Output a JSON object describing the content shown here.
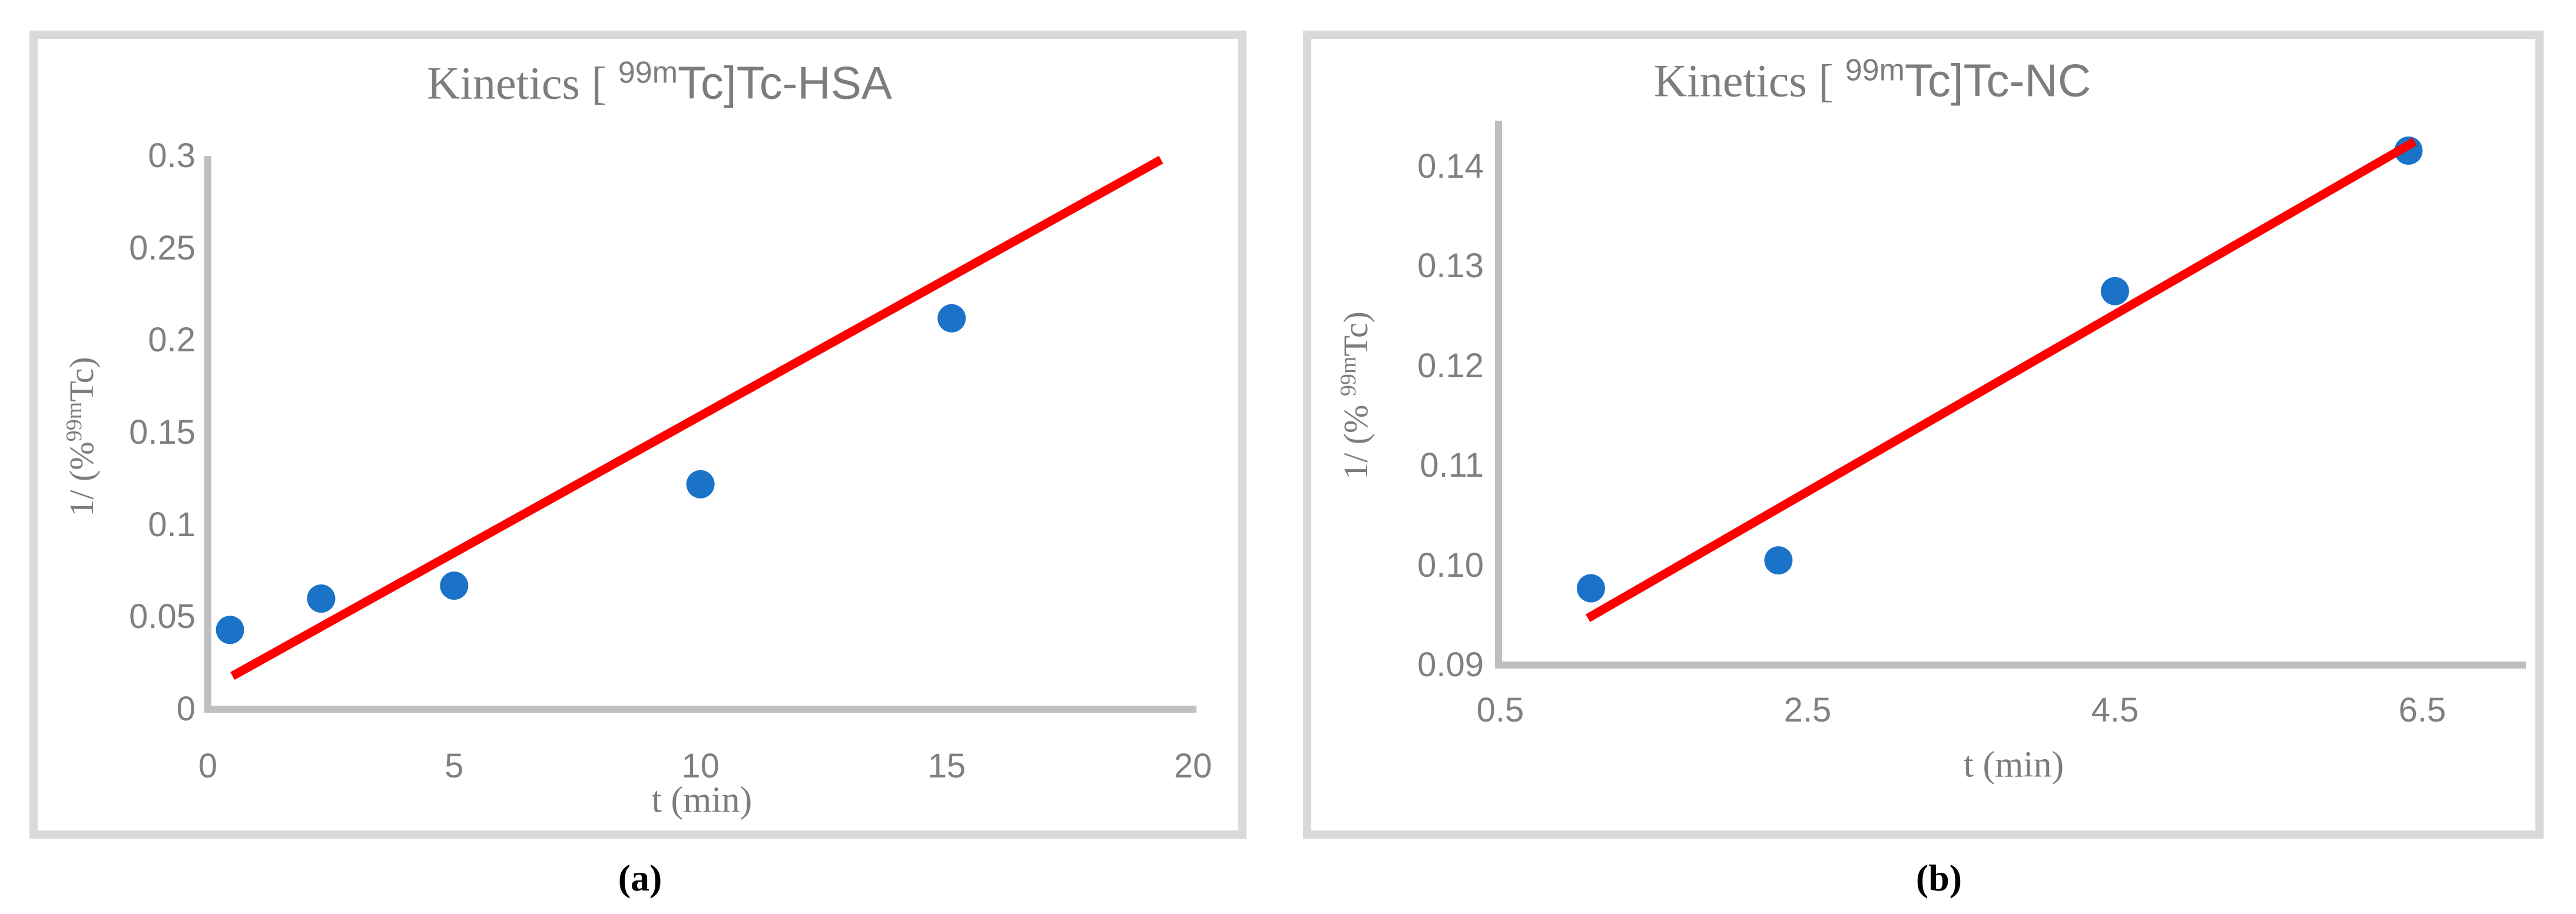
{
  "figure": {
    "caption_a": "(a)",
    "caption_b": "(b)"
  },
  "colors": {
    "marker_blue": "#1a73c8",
    "trend_red": "#fe0000",
    "axis_gray": "#bfbfbf",
    "panel_border": "#d9d9d9",
    "text_gray": "#7d7d7d",
    "caption_black": "#000000"
  },
  "chart_data": [
    {
      "type": "scatter",
      "panel": "a",
      "title": "Kinetics [ 99mTc]Tc-HSA",
      "title_parts": {
        "prefix": "Kinetics [ ",
        "sup": "99m",
        "suffix": "Tc]Tc-HSA"
      },
      "xlabel": "t (min)",
      "ylabel": "1/ (%99mTc)",
      "ylabel_parts": {
        "prefix": "1/ (%",
        "sup": "99m",
        "suffix": "Tc)"
      },
      "xlim": [
        0,
        20
      ],
      "ylim": [
        0,
        0.3
      ],
      "grid": false,
      "legend": false,
      "x_ticks": [
        {
          "label": "0",
          "value": 0
        },
        {
          "label": "5",
          "value": 5
        },
        {
          "label": "10",
          "value": 10
        },
        {
          "label": "15",
          "value": 15
        },
        {
          "label": "20",
          "value": 20
        }
      ],
      "y_ticks": [
        {
          "label": "0",
          "value": 0
        },
        {
          "label": "0.05",
          "value": 0.05
        },
        {
          "label": "0.1",
          "value": 0.1
        },
        {
          "label": "0.15",
          "value": 0.15
        },
        {
          "label": "0.2",
          "value": 0.2
        },
        {
          "label": "0.25",
          "value": 0.25
        },
        {
          "label": "0.3",
          "value": 0.3
        }
      ],
      "points": [
        {
          "x": 0.45,
          "y": 0.043
        },
        {
          "x": 2.3,
          "y": 0.06
        },
        {
          "x": 5.0,
          "y": 0.067
        },
        {
          "x": 10.0,
          "y": 0.122
        },
        {
          "x": 15.1,
          "y": 0.212
        }
      ],
      "trendline": {
        "x1": 0.5,
        "y1": 0.018,
        "x2": 19.35,
        "y2": 0.298
      }
    },
    {
      "type": "scatter",
      "panel": "b",
      "title": "Kinetics [ 99mTc]Tc-NC",
      "title_parts": {
        "prefix": "Kinetics [ ",
        "sup": "99m",
        "suffix": "Tc]Tc-NC"
      },
      "xlabel": "t (min)",
      "ylabel": "1/ (% 99mTc)",
      "ylabel_parts": {
        "prefix": "1/ (% ",
        "sup": "99m",
        "suffix": "Tc)"
      },
      "xlim": [
        0.5,
        6.5
      ],
      "ylim": [
        0.09,
        0.145
      ],
      "grid": false,
      "legend": false,
      "x_ticks": [
        {
          "label": "0.5",
          "value": 0.5
        },
        {
          "label": "2.5",
          "value": 2.5
        },
        {
          "label": "4.5",
          "value": 4.5
        },
        {
          "label": "6.5",
          "value": 6.5
        }
      ],
      "y_ticks": [
        {
          "label": "0.09",
          "value": 0.09
        },
        {
          "label": "0.10",
          "value": 0.1
        },
        {
          "label": "0.11",
          "value": 0.11
        },
        {
          "label": "0.12",
          "value": 0.12
        },
        {
          "label": "0.13",
          "value": 0.13
        },
        {
          "label": "0.14",
          "value": 0.14
        }
      ],
      "points": [
        {
          "x": 1.09,
          "y": 0.0977
        },
        {
          "x": 2.31,
          "y": 0.1005
        },
        {
          "x": 4.5,
          "y": 0.1275
        },
        {
          "x": 6.41,
          "y": 0.1416
        }
      ],
      "trendline": {
        "x1": 1.07,
        "y1": 0.0947,
        "x2": 6.45,
        "y2": 0.1425
      }
    }
  ]
}
